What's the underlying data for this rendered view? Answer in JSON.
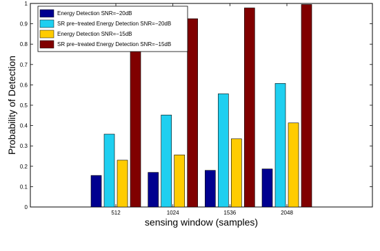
{
  "chart_data": {
    "type": "bar",
    "title": "",
    "xlabel": "sensing window (samples)",
    "ylabel": "Probability of Detection",
    "categories": [
      "512",
      "1024",
      "1536",
      "2048"
    ],
    "ylim": [
      0,
      1
    ],
    "yticks": [
      "0",
      "0.1",
      "0.2",
      "0.3",
      "0.4",
      "0.5",
      "0.6",
      "0.7",
      "0.8",
      "0.9",
      "1"
    ],
    "grid": false,
    "legend_position": "top-left",
    "series": [
      {
        "name": "Energy Detection SNR=−20dB",
        "color": "#00008f",
        "values": [
          0.155,
          0.17,
          0.18,
          0.187
        ]
      },
      {
        "name": "SR pre−treated Energy Detection SNR=−20dB",
        "color": "#1fcff0",
        "values": [
          0.358,
          0.452,
          0.556,
          0.607
        ]
      },
      {
        "name": "Energy Detection SNR=−15dB",
        "color": "#ffcc00",
        "values": [
          0.23,
          0.256,
          0.335,
          0.413
        ]
      },
      {
        "name": "SR pre−treated Energy Detection SNR=−15dB",
        "color": "#800000",
        "values": [
          0.795,
          0.925,
          0.978,
          0.995
        ]
      }
    ]
  }
}
